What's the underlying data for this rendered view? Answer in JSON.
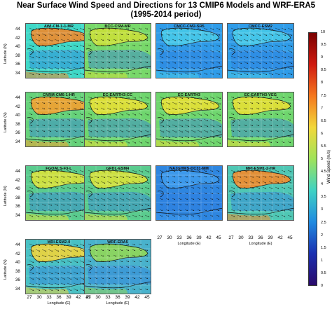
{
  "title_lines": [
    "Near Surface Wind Speed and Directions for 13 CMIP6 Models and WRF-ERA5",
    "(1995-2014 period)"
  ],
  "panels": [
    {
      "label": "AWI-CM-1-1-MR",
      "base": "#3fd8c7",
      "sea": "#f08a2a"
    },
    {
      "label": "BCC-CSM-MR",
      "base": "#78d86a",
      "sea": "#c8e03a"
    },
    {
      "label": "CMCC-CM2-SR5",
      "base": "#2f9ce8",
      "sea": "#47c9e8"
    },
    {
      "label": "CMCC-ESM2",
      "base": "#2f9ce8",
      "sea": "#47c9e8"
    },
    {
      "label": "CNRM-CM6-1-HR",
      "base": "#66d27a",
      "sea": "#f4a030"
    },
    {
      "label": "EC-EARTH3-CC",
      "base": "#6fd66e",
      "sea": "#e6e034"
    },
    {
      "label": "EC-EARTH3",
      "base": "#6fd66e",
      "sea": "#e6e034"
    },
    {
      "label": "EC-EARTH3-VEG",
      "base": "#6fd66e",
      "sea": "#e6e034"
    },
    {
      "label": "FGOALS-F3-L",
      "base": "#5acb8e",
      "sea": "#d8e23a"
    },
    {
      "label": "GFDL-ESM4",
      "base": "#5acb8e",
      "sea": "#d8e23a"
    },
    {
      "label": "NAJGHMS-DC31-MM",
      "base": "#2e86e0",
      "sea": "#3f9bec"
    },
    {
      "label": "MPI-ESM1-2-HR",
      "base": "#4fc7b4",
      "sea": "#f28a2a"
    },
    {
      "label": "MRI-ESM2-0",
      "base": "#49c1c4",
      "sea": "#efd43a"
    },
    {
      "label": "WRF-ERA5",
      "base": "#49b2cc",
      "sea": "#90d658"
    }
  ],
  "y_axis": {
    "title": "Latitude (N)",
    "ticks": [
      "44",
      "42",
      "40",
      "38",
      "36",
      "34"
    ]
  },
  "x_axis": {
    "title": "Longitude (E)",
    "ticks": [
      "27",
      "30",
      "33",
      "36",
      "39",
      "42",
      "45"
    ]
  },
  "colorbar": {
    "title": "Wind Speed (m/s)",
    "ticks": [
      "10",
      "9.5",
      "9",
      "8.5",
      "8",
      "7.5",
      "7",
      "6.5",
      "6",
      "5.5",
      "5",
      "4.5",
      "4",
      "3.5",
      "3",
      "2.5",
      "2",
      "1.5",
      "1",
      "0.5",
      "0"
    ],
    "colors": [
      "#7a0000",
      "#d01a10",
      "#f5781e",
      "#f2d83a",
      "#9fe35a",
      "#3fd2c4",
      "#1f8ae0",
      "#1a2fb0",
      "#2a0a6a"
    ]
  }
}
